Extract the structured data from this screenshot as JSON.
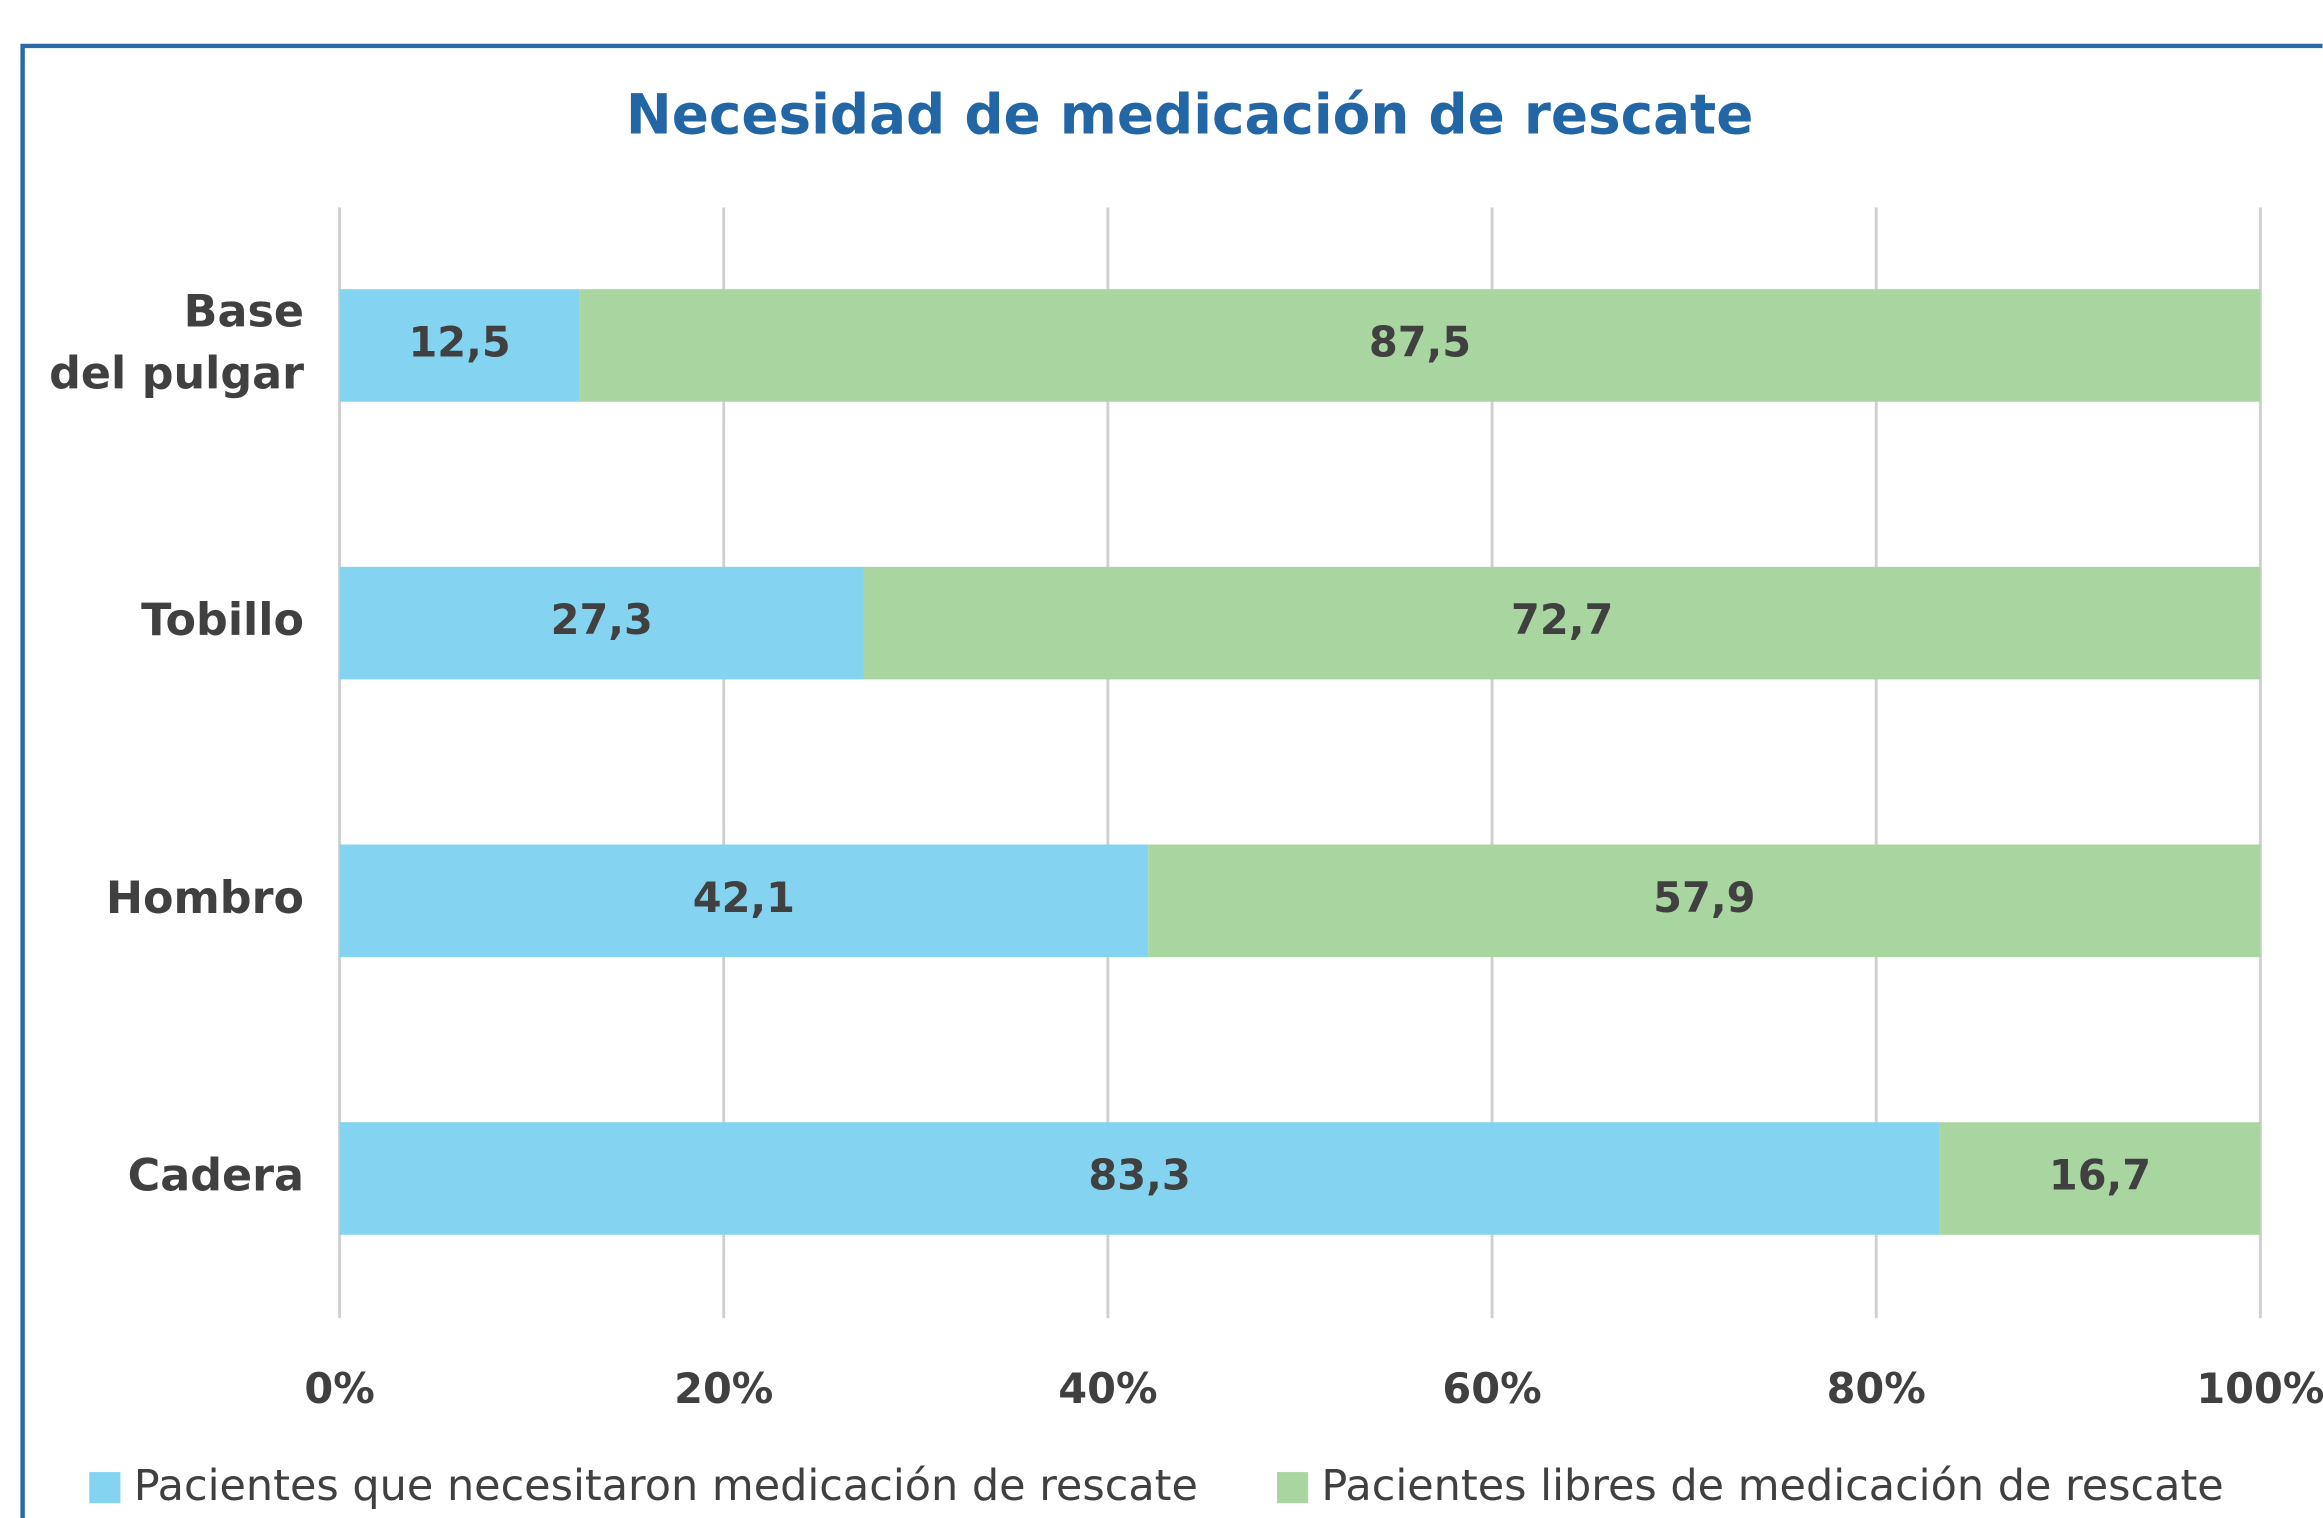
{
  "chart_data": {
    "type": "bar",
    "orientation": "horizontal",
    "stacked": true,
    "title": "Necesidad de medicación de rescate",
    "categories": [
      "Base del pulgar",
      "Tobillo",
      "Hombro",
      "Cadera"
    ],
    "series": [
      {
        "name": "Pacientes que necesitaron medicación de rescate",
        "color": "#84d3f0",
        "values": [
          12.5,
          27.3,
          42.1,
          83.3
        ],
        "value_labels": [
          "12,5",
          "27,3",
          "42,1",
          "83,3"
        ]
      },
      {
        "name": "Pacientes libres de medicación de rescate",
        "color": "#a9d5a0",
        "values": [
          87.5,
          72.7,
          57.9,
          16.7
        ],
        "value_labels": [
          "87,5",
          "72,7",
          "57,9",
          "16,7"
        ]
      }
    ],
    "xlim": [
      0,
      100
    ],
    "xticks": [
      {
        "value": 0,
        "label": "0%"
      },
      {
        "value": 20,
        "label": "20%"
      },
      {
        "value": 40,
        "label": "40%"
      },
      {
        "value": 60,
        "label": "60%"
      },
      {
        "value": 80,
        "label": "80%"
      },
      {
        "value": 100,
        "label": "100%"
      }
    ],
    "grid": true,
    "legend": "bottom"
  }
}
